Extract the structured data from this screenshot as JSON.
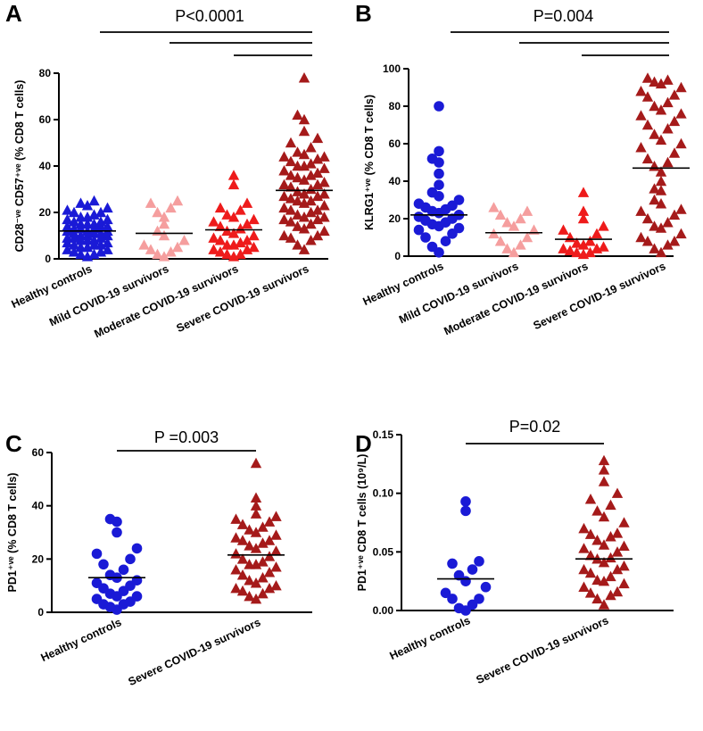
{
  "chart_data": [
    {
      "panel": "A",
      "type": "scatter",
      "title": "P<0.0001",
      "ylabel": "CD28⁻ᵛᵉ CD57⁺ᵛᵉ (% CD8 T cells)",
      "ylim": [
        0,
        80
      ],
      "yticks": [
        "0",
        "20",
        "40",
        "60",
        "80"
      ],
      "categories": [
        "Healthy controls",
        "Mild COVID-19 survivors",
        "Moderate COVID-19 survivors",
        "Severe COVID-19 survivors"
      ],
      "series": [
        {
          "name": "Healthy controls",
          "marker": "triangle",
          "color": "#1a1ad6",
          "mean": 12,
          "values": [
            2,
            3,
            4,
            5,
            6,
            6,
            7,
            8,
            8,
            9,
            9,
            10,
            10,
            11,
            11,
            12,
            12,
            13,
            13,
            14,
            14,
            15,
            15,
            16,
            17,
            18,
            19,
            20,
            21,
            22,
            23,
            24,
            25,
            3,
            5,
            7,
            9,
            11,
            13,
            15,
            17,
            4,
            6,
            8,
            10,
            12,
            14,
            16,
            18,
            20,
            1,
            2
          ]
        },
        {
          "name": "Mild COVID-19 survivors",
          "marker": "triangle",
          "color": "#f59e9e",
          "mean": 11,
          "values": [
            1,
            3,
            5,
            6,
            8,
            10,
            12,
            15,
            18,
            20,
            22,
            24,
            25,
            2,
            4
          ]
        },
        {
          "name": "Moderate COVID-19 survivors",
          "marker": "triangle",
          "color": "#ee1b1b",
          "mean": 12.5,
          "values": [
            1,
            2,
            3,
            4,
            5,
            6,
            6,
            7,
            8,
            9,
            10,
            11,
            12,
            13,
            14,
            15,
            16,
            17,
            18,
            19,
            21,
            22,
            24,
            32,
            36,
            2,
            4,
            8
          ]
        },
        {
          "name": "Severe COVID-19 survivors",
          "marker": "triangle",
          "color": "#a51a1a",
          "mean": 29.5,
          "values": [
            4,
            6,
            8,
            10,
            12,
            14,
            15,
            16,
            17,
            18,
            19,
            20,
            21,
            22,
            23,
            24,
            25,
            26,
            27,
            28,
            29,
            30,
            31,
            32,
            33,
            34,
            35,
            36,
            37,
            38,
            39,
            40,
            41,
            42,
            43,
            44,
            45,
            46,
            48,
            50,
            52,
            55,
            60,
            62,
            78,
            10,
            13,
            17,
            21,
            25,
            28,
            32,
            36,
            40,
            44,
            9,
            18,
            27
          ]
        }
      ],
      "comparisons": [
        {
          "from": "Healthy controls",
          "to": "Severe COVID-19 survivors"
        },
        {
          "from": "Mild COVID-19 survivors",
          "to": "Severe COVID-19 survivors"
        },
        {
          "from": "Moderate COVID-19 survivors",
          "to": "Severe COVID-19 survivors"
        }
      ]
    },
    {
      "panel": "B",
      "type": "scatter",
      "title": "P=0.004",
      "ylabel": "KLRG1⁺ᵛᵉ (% CD8 T cells)",
      "ylim": [
        0,
        100
      ],
      "yticks": [
        "0",
        "20",
        "40",
        "60",
        "80",
        "100"
      ],
      "categories": [
        "Healthy controls",
        "Mild COVID-19 survivors",
        "Moderate COVID-19 survivors",
        "Severe COVID-19 survivors"
      ],
      "series": [
        {
          "name": "Healthy controls",
          "marker": "circle",
          "color": "#1a1ad6",
          "mean": 22,
          "values": [
            2,
            5,
            8,
            10,
            12,
            14,
            15,
            16,
            17,
            18,
            19,
            20,
            21,
            22,
            23,
            24,
            25,
            26,
            27,
            28,
            30,
            32,
            34,
            38,
            44,
            50,
            52,
            56,
            80
          ]
        },
        {
          "name": "Mild COVID-19 survivors",
          "marker": "triangle",
          "color": "#f59e9e",
          "mean": 12.5,
          "values": [
            2,
            4,
            6,
            8,
            10,
            12,
            14,
            16,
            18,
            20,
            22,
            24,
            26
          ]
        },
        {
          "name": "Moderate COVID-19 survivors",
          "marker": "triangle",
          "color": "#ee1b1b",
          "mean": 9,
          "values": [
            1,
            2,
            3,
            4,
            5,
            6,
            7,
            8,
            10,
            12,
            14,
            16,
            20,
            24,
            34,
            2,
            4
          ]
        },
        {
          "name": "Severe COVID-19 survivors",
          "marker": "triangle",
          "color": "#a51a1a",
          "mean": 47,
          "values": [
            2,
            4,
            6,
            8,
            10,
            12,
            15,
            18,
            20,
            22,
            25,
            28,
            30,
            35,
            40,
            45,
            48,
            50,
            55,
            58,
            60,
            65,
            68,
            70,
            72,
            75,
            78,
            80,
            82,
            85,
            88,
            90,
            92,
            94,
            95,
            8,
            16,
            24,
            36,
            52,
            62,
            76,
            86,
            93
          ]
        }
      ],
      "comparisons": [
        {
          "from": "Healthy controls",
          "to": "Severe COVID-19 survivors"
        },
        {
          "from": "Mild COVID-19 survivors",
          "to": "Severe COVID-19 survivors"
        },
        {
          "from": "Moderate COVID-19 survivors",
          "to": "Severe COVID-19 survivors"
        }
      ]
    },
    {
      "panel": "C",
      "type": "scatter",
      "title": "P =0.003",
      "ylabel": "PD1⁺ᵛᵉ  (% CD8 T cells)",
      "ylim": [
        0,
        60
      ],
      "yticks": [
        "0",
        "20",
        "40",
        "60"
      ],
      "categories": [
        "Healthy controls",
        "Severe COVID-19 survivors"
      ],
      "series": [
        {
          "name": "Healthy controls",
          "marker": "circle",
          "color": "#1a1ad6",
          "mean": 13,
          "values": [
            1,
            2,
            3,
            4,
            5,
            6,
            7,
            8,
            9,
            10,
            11,
            12,
            13,
            14,
            16,
            18,
            20,
            22,
            24,
            30,
            34,
            35,
            3,
            6
          ]
        },
        {
          "name": "Severe COVID-19 survivors",
          "marker": "triangle",
          "color": "#a51a1a",
          "mean": 21.5,
          "values": [
            5,
            6,
            7,
            8,
            9,
            10,
            11,
            12,
            13,
            14,
            15,
            16,
            17,
            18,
            19,
            20,
            21,
            22,
            23,
            24,
            25,
            26,
            27,
            28,
            29,
            30,
            31,
            32,
            33,
            34,
            35,
            36,
            37,
            40,
            43,
            56,
            9,
            18,
            27
          ]
        }
      ],
      "comparisons": [
        {
          "from": "Healthy controls",
          "to": "Severe COVID-19 survivors"
        }
      ]
    },
    {
      "panel": "D",
      "type": "scatter",
      "title": "P=0.02",
      "ylabel": "PD1⁺ᵛᵉ CD8 T cells (10⁹/L)",
      "ylim": [
        0,
        0.15
      ],
      "yticks": [
        "0.00",
        "0.05",
        "0.10",
        "0.15"
      ],
      "categories": [
        "Healthy controls",
        "Severe COVID-19 survivors"
      ],
      "series": [
        {
          "name": "Healthy controls",
          "marker": "circle",
          "color": "#1a1ad6",
          "mean": 0.027,
          "values": [
            0.0,
            0.002,
            0.005,
            0.01,
            0.015,
            0.02,
            0.025,
            0.03,
            0.035,
            0.04,
            0.042,
            0.085,
            0.093,
            0.01
          ]
        },
        {
          "name": "Severe COVID-19 survivors",
          "marker": "triangle",
          "color": "#a51a1a",
          "mean": 0.044,
          "values": [
            0.005,
            0.01,
            0.013,
            0.016,
            0.02,
            0.023,
            0.026,
            0.029,
            0.032,
            0.035,
            0.038,
            0.041,
            0.044,
            0.047,
            0.05,
            0.053,
            0.056,
            0.06,
            0.063,
            0.066,
            0.07,
            0.075,
            0.08,
            0.085,
            0.09,
            0.095,
            0.1,
            0.11,
            0.12,
            0.128,
            0.015,
            0.025,
            0.035,
            0.045,
            0.055,
            0.065
          ]
        }
      ],
      "comparisons": [
        {
          "from": "Healthy controls",
          "to": "Severe COVID-19 survivors"
        }
      ]
    }
  ]
}
